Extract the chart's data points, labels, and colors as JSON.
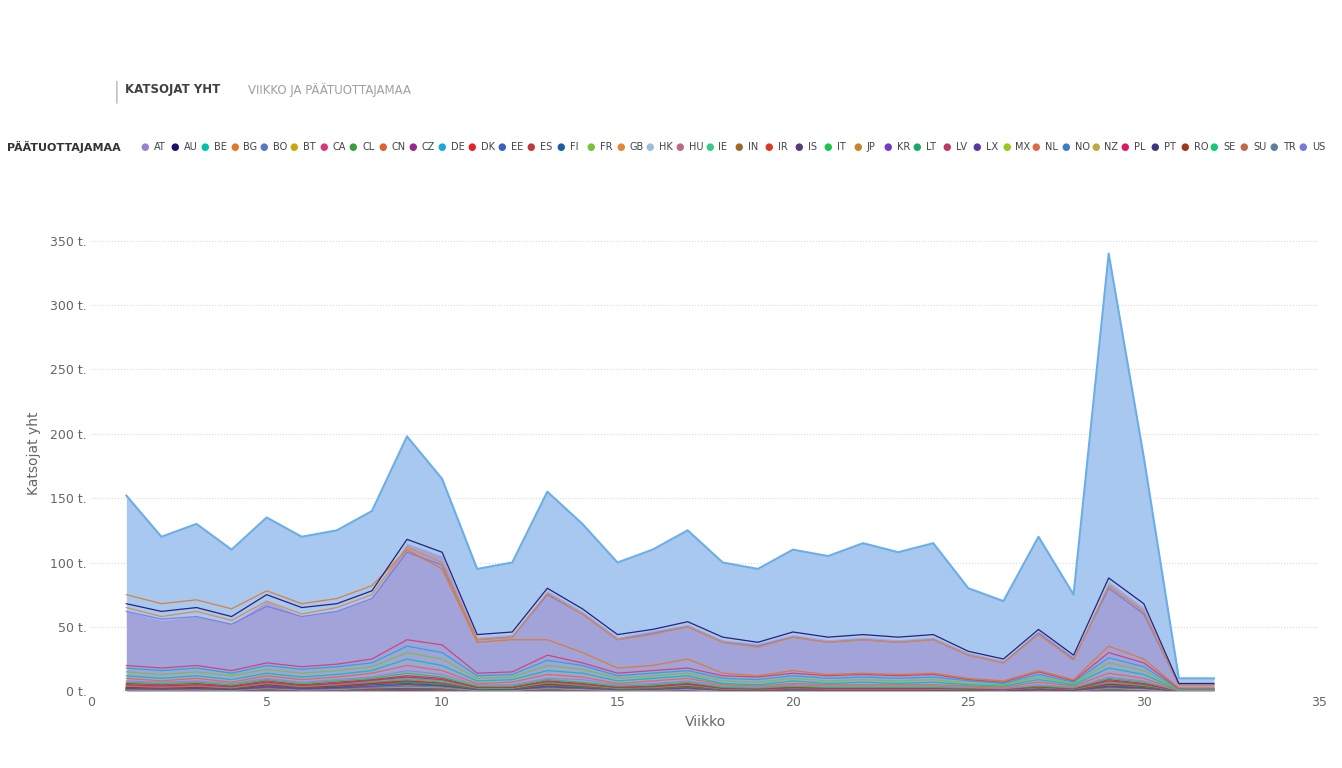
{
  "title_tab1": "KATSOJAT YHT",
  "title_tab2": "VIIKKO JA PÄÄTUOTTAJAMAA",
  "legend_title": "PÄÄTUOTTAJAMAA",
  "xlabel": "Viikko",
  "ylabel": "Katsojat yht",
  "ylim": [
    0,
    370
  ],
  "xlim": [
    0,
    35
  ],
  "yticks": [
    0,
    50,
    100,
    150,
    200,
    250,
    300,
    350
  ],
  "ytick_labels": [
    "0 t.",
    "50 t.",
    "100 t.",
    "150 t.",
    "200 t.",
    "250 t.",
    "300 t.",
    "350 t."
  ],
  "xticks": [
    0,
    5,
    10,
    15,
    20,
    25,
    30,
    35
  ],
  "weeks": [
    1,
    2,
    3,
    4,
    5,
    6,
    7,
    8,
    9,
    10,
    11,
    12,
    13,
    14,
    15,
    16,
    17,
    18,
    19,
    20,
    21,
    22,
    23,
    24,
    25,
    26,
    27,
    28,
    29,
    30,
    31,
    32
  ],
  "total_viewers": [
    152,
    120,
    130,
    110,
    135,
    120,
    125,
    140,
    198,
    165,
    95,
    100,
    155,
    130,
    100,
    110,
    125,
    100,
    95,
    110,
    105,
    115,
    108,
    115,
    80,
    70,
    120,
    75,
    340,
    182,
    10,
    10
  ],
  "purple_fill": [
    62,
    55,
    58,
    52,
    70,
    58,
    62,
    72,
    115,
    105,
    42,
    44,
    78,
    62,
    42,
    47,
    52,
    40,
    37,
    44,
    40,
    42,
    40,
    42,
    30,
    24,
    47,
    27,
    85,
    65,
    6,
    6
  ],
  "background_color": "#ffffff",
  "area_fill_color": "#a8c8f0",
  "area_line_color": "#6aaee8",
  "purple_fill_color": "#a090cc",
  "countries": [
    "AT",
    "AU",
    "BE",
    "BG",
    "BO",
    "BT",
    "CA",
    "CL",
    "CN",
    "CZ",
    "DE",
    "DK",
    "EE",
    "ES",
    "FI",
    "FR",
    "GB",
    "HK",
    "HU",
    "IE",
    "IN",
    "IR",
    "IS",
    "IT",
    "JP",
    "KR",
    "LT",
    "LV",
    "LX",
    "MX",
    "NL",
    "NO",
    "NZ",
    "PL",
    "PT",
    "RO",
    "SE",
    "SU",
    "TR",
    "US"
  ],
  "country_colors": {
    "AT": "#9b7fd4",
    "AU": "#1a1070",
    "BE": "#00c0b0",
    "BG": "#e07828",
    "BO": "#5878c8",
    "BT": "#c8a808",
    "CA": "#d83878",
    "CL": "#38a038",
    "CN": "#e06030",
    "CZ": "#982890",
    "DE": "#18a8e0",
    "DK": "#e82020",
    "EE": "#3860c0",
    "ES": "#c03838",
    "FI": "#1860a0",
    "FR": "#78c038",
    "GB": "#e08838",
    "HK": "#98c0e0",
    "HU": "#c06888",
    "IE": "#38c888",
    "IN": "#a06828",
    "IR": "#e03820",
    "IS": "#583880",
    "IT": "#18c848",
    "JP": "#c08828",
    "KR": "#7838c8",
    "LT": "#18a868",
    "LV": "#c03868",
    "LX": "#5838a0",
    "MX": "#98c818",
    "NL": "#e06848",
    "NO": "#3880c8",
    "NZ": "#c0a848",
    "PL": "#e01868",
    "PT": "#383880",
    "RO": "#a03818",
    "SE": "#18c878",
    "SU": "#c06848",
    "TR": "#5880a0",
    "US": "#7878e0"
  },
  "series_data": {
    "AU": [
      68,
      62,
      65,
      58,
      75,
      65,
      68,
      78,
      118,
      108,
      44,
      46,
      80,
      64,
      44,
      48,
      54,
      42,
      38,
      46,
      42,
      44,
      42,
      44,
      31,
      25,
      48,
      28,
      88,
      68,
      6,
      6
    ],
    "GB": [
      65,
      58,
      62,
      55,
      70,
      60,
      65,
      75,
      112,
      100,
      40,
      42,
      76,
      60,
      40,
      44,
      50,
      38,
      34,
      42,
      38,
      40,
      38,
      40,
      28,
      22,
      44,
      24,
      82,
      62,
      5,
      5
    ],
    "US": [
      62,
      56,
      58,
      52,
      66,
      58,
      62,
      72,
      108,
      98,
      40,
      42,
      75,
      60,
      40,
      45,
      50,
      38,
      35,
      42,
      38,
      40,
      38,
      40,
      28,
      22,
      45,
      25,
      80,
      60,
      5,
      5
    ],
    "CA": [
      20,
      18,
      20,
      16,
      22,
      19,
      21,
      25,
      40,
      36,
      14,
      15,
      28,
      22,
      14,
      16,
      18,
      12,
      11,
      14,
      12,
      13,
      12,
      13,
      9,
      7,
      15,
      8,
      30,
      22,
      2,
      2
    ],
    "DE": [
      18,
      16,
      18,
      14,
      20,
      17,
      19,
      22,
      35,
      30,
      12,
      13,
      24,
      20,
      12,
      14,
      16,
      10,
      9,
      12,
      10,
      11,
      10,
      11,
      8,
      6,
      13,
      7,
      26,
      19,
      1.5,
      1.5
    ],
    "FR": [
      15,
      13,
      15,
      12,
      17,
      14,
      16,
      19,
      30,
      25,
      10,
      11,
      20,
      17,
      10,
      12,
      14,
      8,
      7,
      10,
      8,
      9,
      8,
      9,
      6,
      5,
      11,
      6,
      22,
      16,
      1,
      1
    ],
    "BE": [
      12,
      10,
      12,
      9,
      14,
      11,
      13,
      16,
      25,
      20,
      8,
      9,
      16,
      14,
      8,
      10,
      12,
      6,
      5,
      8,
      6,
      7,
      6,
      7,
      5,
      4,
      9,
      5,
      18,
      13,
      1,
      1
    ],
    "NL": [
      10,
      8,
      10,
      7,
      12,
      9,
      11,
      14,
      20,
      16,
      6,
      7,
      13,
      11,
      6,
      8,
      10,
      5,
      4,
      6,
      5,
      5,
      5,
      5,
      4,
      3,
      7,
      4,
      14,
      10,
      0.8,
      0.8
    ],
    "AT": [
      8,
      7,
      8,
      6,
      10,
      7,
      9,
      11,
      16,
      13,
      5,
      5,
      10,
      9,
      5,
      6,
      8,
      4,
      3,
      5,
      4,
      4,
      4,
      4,
      3,
      2,
      5,
      3,
      11,
      8,
      0.5,
      0.5
    ],
    "IT": [
      7,
      6,
      7,
      5,
      9,
      6,
      8,
      10,
      14,
      11,
      4,
      4,
      9,
      7,
      4,
      5,
      7,
      3,
      2.5,
      4,
      3,
      3,
      3,
      3,
      2.5,
      2,
      4,
      2.5,
      10,
      7,
      0.5,
      0.5
    ],
    "ES": [
      6,
      5,
      6,
      4,
      8,
      5,
      7,
      9,
      12,
      10,
      3,
      3,
      8,
      6,
      3,
      4,
      6,
      2.5,
      2,
      3,
      2.5,
      2.5,
      2.5,
      2.5,
      2,
      1.5,
      3.5,
      2,
      9,
      6,
      0.4,
      0.4
    ],
    "SE": [
      5,
      4,
      5,
      3,
      7,
      4,
      6,
      8,
      10,
      8,
      2.5,
      2.5,
      7,
      5,
      2.5,
      3,
      5,
      2,
      1.5,
      2.5,
      2,
      2,
      2,
      2,
      1.5,
      1.2,
      3,
      1.7,
      7.5,
      5,
      0.3,
      0.3
    ],
    "NO": [
      4,
      3,
      4,
      2.5,
      6,
      3.5,
      5,
      7,
      8,
      6.5,
      2,
      2,
      6,
      4,
      2,
      2.5,
      4,
      1.5,
      1.2,
      2,
      1.5,
      1.5,
      1.5,
      1.5,
      1.2,
      1,
      2.5,
      1.4,
      6,
      4,
      0.3,
      0.3
    ],
    "DK": [
      3,
      2.5,
      3,
      2,
      5,
      3,
      4,
      6,
      7,
      5.5,
      1.8,
      1.8,
      5,
      3.5,
      1.8,
      2,
      3.5,
      1.2,
      1,
      1.5,
      1.2,
      1.2,
      1.2,
      1.2,
      1,
      0.8,
      2,
      1.2,
      5,
      3.5,
      0.2,
      0.2
    ],
    "FI": [
      2.5,
      2,
      2.5,
      1.5,
      4,
      2.5,
      3,
      5,
      6,
      4.5,
      1.5,
      1.5,
      4,
      3,
      1.5,
      1.7,
      3,
      1,
      0.8,
      1.2,
      1,
      1,
      1,
      1,
      0.8,
      0.6,
      1.5,
      1,
      4,
      3,
      0.2,
      0.2
    ],
    "NZ": [
      2,
      1.5,
      2,
      1.2,
      3.5,
      2,
      2.5,
      4,
      5,
      4,
      1.2,
      1.2,
      3.5,
      2.5,
      1.2,
      1.4,
      2.5,
      0.8,
      0.6,
      1,
      0.8,
      0.8,
      0.8,
      0.8,
      0.6,
      0.5,
      1.2,
      0.8,
      3.5,
      2.5,
      0.15,
      0.15
    ],
    "IE": [
      1.5,
      1.2,
      1.5,
      1,
      3,
      1.5,
      2,
      3.5,
      4,
      3.5,
      1,
      1,
      3,
      2,
      1,
      1.2,
      2,
      0.6,
      0.5,
      0.8,
      0.6,
      0.6,
      0.6,
      0.6,
      0.5,
      0.4,
      1,
      0.6,
      3,
      2,
      0.1,
      0.1
    ],
    "HK": [
      1.2,
      1,
      1.2,
      0.8,
      2.5,
      1.2,
      1.5,
      3,
      3.5,
      3,
      0.8,
      0.8,
      2.5,
      1.5,
      0.8,
      1,
      1.5,
      0.5,
      0.4,
      0.6,
      0.5,
      0.5,
      0.5,
      0.5,
      0.4,
      0.3,
      0.8,
      0.5,
      2.5,
      1.5,
      0.1,
      0.1
    ],
    "JP": [
      1,
      0.8,
      1,
      0.6,
      2,
      1,
      1.2,
      2.5,
      3,
      2.5,
      0.6,
      0.6,
      2,
      1.2,
      0.6,
      0.8,
      1.2,
      0.4,
      0.3,
      0.5,
      0.4,
      0.4,
      0.4,
      0.4,
      0.3,
      0.25,
      0.6,
      0.4,
      2,
      1.2,
      0.08,
      0.08
    ],
    "CN": [
      0.8,
      0.6,
      0.8,
      0.5,
      1.5,
      0.8,
      1,
      2,
      2.5,
      2,
      0.5,
      0.5,
      1.5,
      1,
      0.5,
      0.6,
      1,
      0.3,
      0.25,
      0.4,
      0.3,
      0.3,
      0.3,
      0.3,
      0.25,
      0.2,
      0.5,
      0.3,
      1.5,
      1,
      0.06,
      0.06
    ],
    "BG": [
      75,
      68,
      71,
      64,
      78,
      68,
      72,
      82,
      110,
      95,
      38,
      40,
      40,
      30,
      18,
      20,
      25,
      14,
      12,
      16,
      13,
      14,
      13,
      14,
      10,
      8,
      16,
      9,
      35,
      25,
      2.5,
      2.5
    ],
    "CL": [
      3,
      2.5,
      3,
      2,
      5,
      3,
      4,
      6,
      7,
      5.5,
      1.8,
      1.8,
      5,
      3.5,
      1.8,
      2,
      3.5,
      1.2,
      1,
      1.5,
      1.2,
      1.2,
      1.2,
      1.2,
      1,
      0.8,
      2,
      1.2,
      5,
      3.5,
      0.2,
      0.2
    ],
    "HU": [
      4,
      3,
      4,
      2.5,
      6,
      3.5,
      5,
      7,
      9,
      7,
      2.2,
      2.2,
      6.5,
      4.5,
      2.2,
      2.7,
      4.5,
      1.6,
      1.3,
      2.1,
      1.6,
      1.6,
      1.6,
      1.6,
      1.3,
      1.0,
      2.6,
      1.5,
      6.5,
      4.5,
      0.3,
      0.3
    ],
    "PL": [
      5,
      4,
      5,
      3.5,
      7,
      4.5,
      6,
      8.5,
      11,
      9,
      3,
      3,
      7.5,
      5.5,
      3,
      3.5,
      5.5,
      2.2,
      1.7,
      2.7,
      2.2,
      2.2,
      2.2,
      2.2,
      1.7,
      1.3,
      3.2,
      1.9,
      8,
      5.5,
      0.35,
      0.35
    ],
    "RO": [
      3,
      2.5,
      3,
      2,
      5,
      3,
      4,
      6,
      8,
      6.5,
      2,
      2,
      5.5,
      4,
      2,
      2.5,
      4,
      1.5,
      1.1,
      1.8,
      1.4,
      1.4,
      1.4,
      1.4,
      1.1,
      0.85,
      2.2,
      1.3,
      5.5,
      4,
      0.25,
      0.25
    ],
    "IN": [
      2,
      1.6,
      2,
      1.4,
      3,
      1.8,
      2.4,
      3.6,
      5,
      4,
      1.2,
      1.3,
      3.2,
      2.3,
      1.2,
      1.4,
      2.3,
      0.9,
      0.7,
      1.0,
      0.8,
      0.8,
      0.8,
      0.8,
      0.6,
      0.5,
      1.0,
      0.65,
      3.2,
      2.3,
      0.12,
      0.12
    ],
    "KR": [
      2,
      1.6,
      2,
      1.3,
      3.2,
      1.9,
      2.5,
      3.8,
      5.2,
      4.2,
      1.3,
      1.3,
      3.4,
      2.4,
      1.3,
      1.5,
      2.4,
      0.9,
      0.75,
      1.1,
      0.85,
      0.85,
      0.85,
      0.85,
      0.65,
      0.5,
      1.1,
      0.7,
      3.4,
      2.4,
      0.13,
      0.13
    ],
    "TR": [
      1.5,
      1.2,
      1.5,
      1,
      2.5,
      1.4,
      1.8,
      2.9,
      4,
      3.2,
      1,
      1,
      2.6,
      1.9,
      1,
      1.1,
      1.9,
      0.7,
      0.55,
      0.8,
      0.65,
      0.65,
      0.65,
      0.65,
      0.5,
      0.4,
      0.85,
      0.55,
      2.6,
      1.9,
      0.1,
      0.1
    ],
    "SU": [
      1.2,
      1,
      1.2,
      0.8,
      2,
      1.1,
      1.4,
      2.3,
      3.2,
      2.6,
      0.8,
      0.8,
      2.1,
      1.5,
      0.8,
      0.9,
      1.5,
      0.55,
      0.44,
      0.65,
      0.52,
      0.52,
      0.52,
      0.52,
      0.4,
      0.32,
      0.68,
      0.44,
      2.1,
      1.5,
      0.08,
      0.08
    ],
    "PT": [
      1,
      0.8,
      1,
      0.65,
      1.7,
      0.95,
      1.2,
      2,
      2.7,
      2.2,
      0.68,
      0.68,
      1.8,
      1.3,
      0.68,
      0.78,
      1.3,
      0.47,
      0.38,
      0.55,
      0.44,
      0.44,
      0.44,
      0.44,
      0.34,
      0.27,
      0.58,
      0.38,
      1.8,
      1.3,
      0.07,
      0.07
    ],
    "LV": [
      0.9,
      0.72,
      0.9,
      0.58,
      1.5,
      0.85,
      1.1,
      1.8,
      2.4,
      1.95,
      0.6,
      0.6,
      1.6,
      1.15,
      0.6,
      0.7,
      1.15,
      0.42,
      0.34,
      0.49,
      0.39,
      0.39,
      0.39,
      0.39,
      0.3,
      0.24,
      0.52,
      0.34,
      1.6,
      1.15,
      0.06,
      0.06
    ],
    "LT": [
      0.8,
      0.64,
      0.8,
      0.52,
      1.35,
      0.76,
      0.98,
      1.6,
      2.1,
      1.7,
      0.54,
      0.54,
      1.4,
      1.0,
      0.54,
      0.62,
      1.0,
      0.37,
      0.3,
      0.44,
      0.35,
      0.35,
      0.35,
      0.35,
      0.27,
      0.21,
      0.46,
      0.3,
      1.4,
      1.0,
      0.055,
      0.055
    ],
    "LX": [
      0.6,
      0.48,
      0.6,
      0.39,
      1.0,
      0.57,
      0.73,
      1.2,
      1.6,
      1.3,
      0.4,
      0.4,
      1.05,
      0.76,
      0.4,
      0.46,
      0.76,
      0.28,
      0.22,
      0.33,
      0.26,
      0.26,
      0.26,
      0.26,
      0.2,
      0.16,
      0.35,
      0.22,
      1.05,
      0.76,
      0.04,
      0.04
    ],
    "MX": [
      0.5,
      0.4,
      0.5,
      0.32,
      0.85,
      0.48,
      0.62,
      1.0,
      1.35,
      1.1,
      0.34,
      0.34,
      0.9,
      0.64,
      0.34,
      0.39,
      0.64,
      0.23,
      0.19,
      0.28,
      0.22,
      0.22,
      0.22,
      0.22,
      0.17,
      0.13,
      0.29,
      0.19,
      0.9,
      0.64,
      0.035,
      0.035
    ],
    "IS": [
      0.4,
      0.32,
      0.4,
      0.26,
      0.7,
      0.39,
      0.5,
      0.82,
      1.1,
      0.9,
      0.27,
      0.27,
      0.72,
      0.52,
      0.27,
      0.31,
      0.52,
      0.19,
      0.15,
      0.22,
      0.18,
      0.18,
      0.18,
      0.18,
      0.14,
      0.11,
      0.24,
      0.15,
      0.72,
      0.52,
      0.028,
      0.028
    ],
    "IR": [
      0.35,
      0.28,
      0.35,
      0.23,
      0.6,
      0.34,
      0.43,
      0.71,
      0.95,
      0.77,
      0.24,
      0.24,
      0.62,
      0.45,
      0.24,
      0.27,
      0.45,
      0.16,
      0.13,
      0.19,
      0.15,
      0.15,
      0.15,
      0.15,
      0.12,
      0.09,
      0.2,
      0.13,
      0.62,
      0.45,
      0.024,
      0.024
    ],
    "EE": [
      0.3,
      0.24,
      0.3,
      0.19,
      0.5,
      0.28,
      0.37,
      0.6,
      0.8,
      0.65,
      0.2,
      0.2,
      0.52,
      0.37,
      0.2,
      0.23,
      0.37,
      0.14,
      0.11,
      0.16,
      0.13,
      0.13,
      0.13,
      0.13,
      0.1,
      0.08,
      0.17,
      0.11,
      0.52,
      0.37,
      0.02,
      0.02
    ],
    "CZ": [
      0.25,
      0.2,
      0.25,
      0.16,
      0.42,
      0.24,
      0.31,
      0.5,
      0.67,
      0.54,
      0.17,
      0.17,
      0.44,
      0.31,
      0.17,
      0.19,
      0.31,
      0.11,
      0.09,
      0.14,
      0.11,
      0.11,
      0.11,
      0.11,
      0.08,
      0.07,
      0.14,
      0.09,
      0.44,
      0.31,
      0.017,
      0.017
    ],
    "BT": [
      0.2,
      0.16,
      0.2,
      0.13,
      0.34,
      0.19,
      0.25,
      0.4,
      0.54,
      0.43,
      0.13,
      0.13,
      0.35,
      0.25,
      0.13,
      0.15,
      0.25,
      0.09,
      0.07,
      0.11,
      0.09,
      0.09,
      0.09,
      0.09,
      0.07,
      0.05,
      0.11,
      0.07,
      0.35,
      0.25,
      0.013,
      0.013
    ],
    "BO": [
      0.15,
      0.12,
      0.15,
      0.1,
      0.25,
      0.14,
      0.18,
      0.3,
      0.4,
      0.32,
      0.1,
      0.1,
      0.26,
      0.19,
      0.1,
      0.11,
      0.19,
      0.07,
      0.055,
      0.08,
      0.065,
      0.065,
      0.065,
      0.065,
      0.05,
      0.04,
      0.08,
      0.055,
      0.26,
      0.19,
      0.01,
      0.01
    ]
  },
  "top_line_color": "#6aaee8",
  "top_line_width": 1.5,
  "grid_color": "#d8d8d8",
  "text_color": "#666666",
  "tab_text_color1": "#404040",
  "tab_text_color2": "#a0a0a0"
}
